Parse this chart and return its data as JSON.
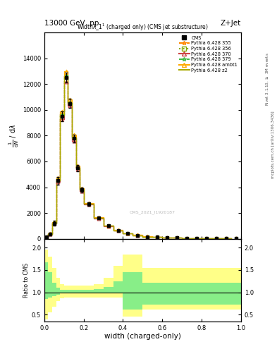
{
  "title_top_left": "13000 GeV pp",
  "title_top_right": "Z+Jet",
  "plot_title": "Width $\\lambda$_1$^1$ (charged only) (CMS jet substructure)",
  "xlabel": "width (charged-only)",
  "ylabel_main": "$\\frac{1}{\\mathrm{d}N}$ / $\\mathrm{d}\\lambda$",
  "ylabel_ratio": "Ratio to CMS",
  "watermark": "CMS_2021_I1920187",
  "xlim": [
    0.0,
    1.0
  ],
  "ylim_main": [
    0,
    16000
  ],
  "ylim_ratio": [
    0.35,
    2.2
  ],
  "yticks_main": [
    0,
    2000,
    4000,
    6000,
    8000,
    10000,
    12000,
    14000
  ],
  "yticks_ratio": [
    0.5,
    1.0,
    1.5,
    2.0
  ],
  "x_bins": [
    0.0,
    0.02,
    0.04,
    0.06,
    0.08,
    0.1,
    0.12,
    0.14,
    0.16,
    0.18,
    0.2,
    0.25,
    0.3,
    0.35,
    0.4,
    0.45,
    0.5,
    0.55,
    0.6,
    0.65,
    0.7,
    0.75,
    0.8,
    0.85,
    0.9,
    0.95,
    1.0
  ],
  "cms_data_y": [
    120,
    350,
    1200,
    4500,
    9500,
    12500,
    10500,
    7800,
    5500,
    3800,
    2700,
    1600,
    1000,
    650,
    420,
    280,
    170,
    120,
    85,
    65,
    50,
    38,
    30,
    24,
    19,
    15
  ],
  "cms_data_ey": [
    80,
    100,
    200,
    300,
    400,
    400,
    350,
    300,
    250,
    200,
    150,
    100,
    70,
    50,
    40,
    30,
    25,
    20,
    15,
    12,
    10,
    8,
    6,
    5,
    4,
    3
  ],
  "series": [
    {
      "label": "Pythia 6.428 355",
      "color": "#ff8800",
      "linestyle": "--",
      "marker": "*",
      "values": [
        130,
        370,
        1250,
        4600,
        9700,
        12700,
        10600,
        7900,
        5550,
        3850,
        2730,
        1620,
        1010,
        655,
        425,
        282,
        172,
        122,
        86,
        66,
        51,
        39,
        31,
        25,
        20,
        16
      ]
    },
    {
      "label": "Pythia 6.428 356",
      "color": "#88aa00",
      "linestyle": ":",
      "marker": "s",
      "values": [
        125,
        360,
        1230,
        4550,
        9600,
        12600,
        10550,
        7850,
        5520,
        3820,
        2710,
        1610,
        1005,
        652,
        422,
        280,
        171,
        121,
        85,
        65,
        50,
        38,
        30,
        24,
        19,
        15
      ]
    },
    {
      "label": "Pythia 6.428 370",
      "color": "#cc4444",
      "linestyle": "-",
      "marker": "^",
      "values": [
        115,
        340,
        1180,
        4400,
        9300,
        12200,
        10300,
        7600,
        5400,
        3720,
        2650,
        1580,
        990,
        640,
        415,
        275,
        168,
        118,
        83,
        63,
        49,
        37,
        29,
        23,
        18,
        14
      ]
    },
    {
      "label": "Pythia 6.428 379",
      "color": "#44bb44",
      "linestyle": "--",
      "marker": "*",
      "values": [
        128,
        365,
        1240,
        4580,
        9650,
        12650,
        10580,
        7870,
        5535,
        3835,
        2720,
        1615,
        1008,
        653,
        423,
        281,
        171,
        121,
        85,
        65,
        50,
        38,
        30,
        24,
        19,
        15
      ]
    },
    {
      "label": "Pythia 6.428 ambt1",
      "color": "#ffaa00",
      "linestyle": "-",
      "marker": "^",
      "values": [
        140,
        395,
        1300,
        4750,
        9900,
        13000,
        10800,
        8050,
        5650,
        3920,
        2780,
        1650,
        1030,
        665,
        430,
        286,
        174,
        123,
        87,
        67,
        52,
        40,
        32,
        26,
        21,
        17
      ]
    },
    {
      "label": "Pythia 6.428 z2",
      "color": "#aaaa00",
      "linestyle": "-",
      "marker": null,
      "values": [
        122,
        355,
        1210,
        4520,
        9550,
        12550,
        10520,
        7820,
        5510,
        3810,
        2705,
        1608,
        1003,
        651,
        421,
        279,
        170,
        120,
        84,
        64,
        50,
        38,
        30,
        24,
        19,
        15
      ]
    }
  ],
  "ratio_yellow_lo": [
    0.4,
    0.55,
    0.68,
    0.8,
    0.87,
    0.88,
    0.88,
    0.88,
    0.88,
    0.88,
    0.88,
    0.88,
    0.88,
    0.88,
    0.45,
    0.45,
    0.62,
    0.62,
    0.62,
    0.62,
    0.62,
    0.62,
    0.62,
    0.62,
    0.62,
    0.62
  ],
  "ratio_yellow_hi": [
    1.95,
    1.8,
    1.55,
    1.32,
    1.18,
    1.15,
    1.15,
    1.15,
    1.15,
    1.15,
    1.15,
    1.18,
    1.32,
    1.6,
    1.85,
    1.85,
    1.55,
    1.55,
    1.55,
    1.55,
    1.55,
    1.55,
    1.55,
    1.55,
    1.55,
    1.55
  ],
  "ratio_green_lo": [
    0.85,
    0.88,
    0.92,
    0.95,
    0.97,
    0.97,
    0.97,
    0.97,
    0.97,
    0.97,
    0.97,
    0.97,
    0.97,
    0.97,
    0.62,
    0.62,
    0.72,
    0.72,
    0.72,
    0.72,
    0.72,
    0.72,
    0.72,
    0.72,
    0.72,
    0.72
  ],
  "ratio_green_hi": [
    1.68,
    1.45,
    1.22,
    1.1,
    1.05,
    1.05,
    1.05,
    1.05,
    1.05,
    1.05,
    1.05,
    1.08,
    1.12,
    1.25,
    1.45,
    1.45,
    1.22,
    1.22,
    1.22,
    1.22,
    1.22,
    1.22,
    1.22,
    1.22,
    1.22,
    1.22
  ]
}
